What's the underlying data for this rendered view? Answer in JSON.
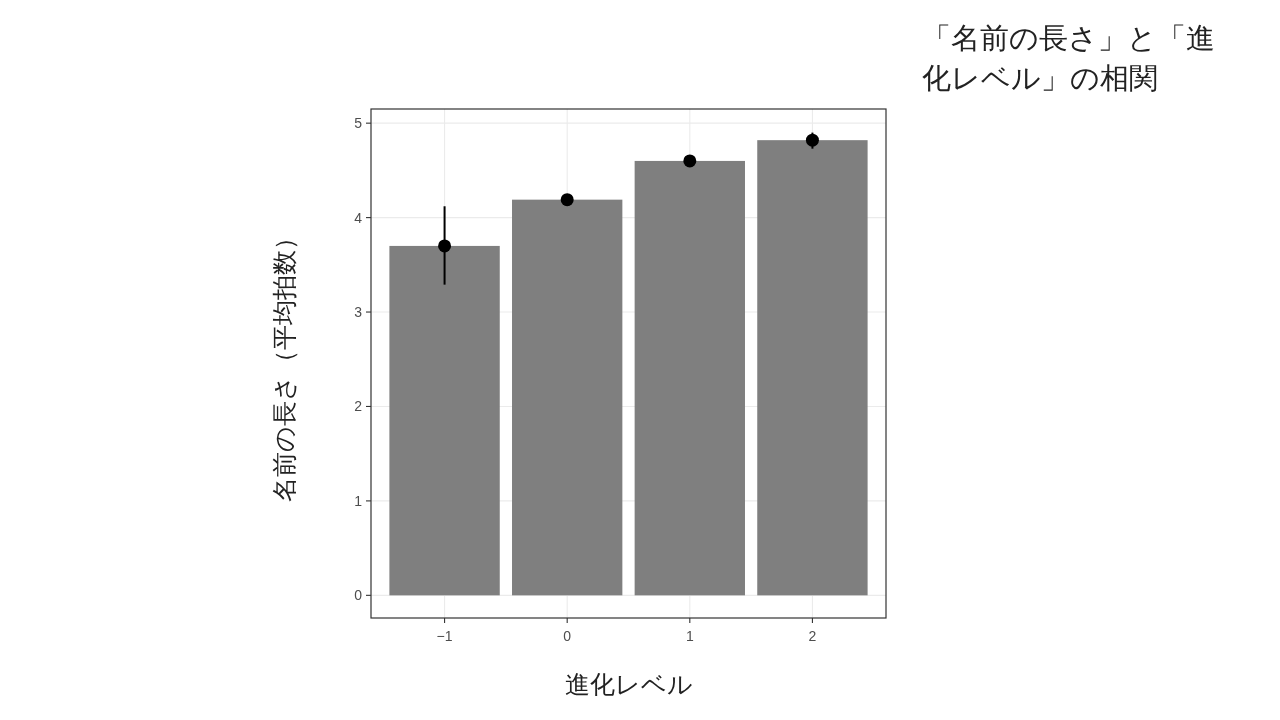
{
  "chart_data": {
    "type": "bar",
    "title": "「名前の長さ」と「進化レベル」の相関",
    "xlabel": "進化レベル",
    "ylabel": "名前の長さ（平均拍数）",
    "categories": [
      "−1",
      "0",
      "1",
      "2"
    ],
    "series": [
      {
        "color": "#7f7f7f",
        "values": [
          3.7,
          4.19,
          4.6,
          4.82
        ]
      },
      {
        "type": "scatter",
        "color": "#000000",
        "marker": "circle",
        "values": [
          3.7,
          4.19,
          4.6,
          4.82
        ],
        "errors": [
          [
            3.29,
            4.12
          ],
          null,
          null,
          [
            4.73,
            4.9
          ]
        ]
      }
    ],
    "ylim": [
      -0.24,
      5.15
    ],
    "yticks": [
      0,
      1,
      2,
      3,
      4,
      5
    ],
    "grid": true
  }
}
